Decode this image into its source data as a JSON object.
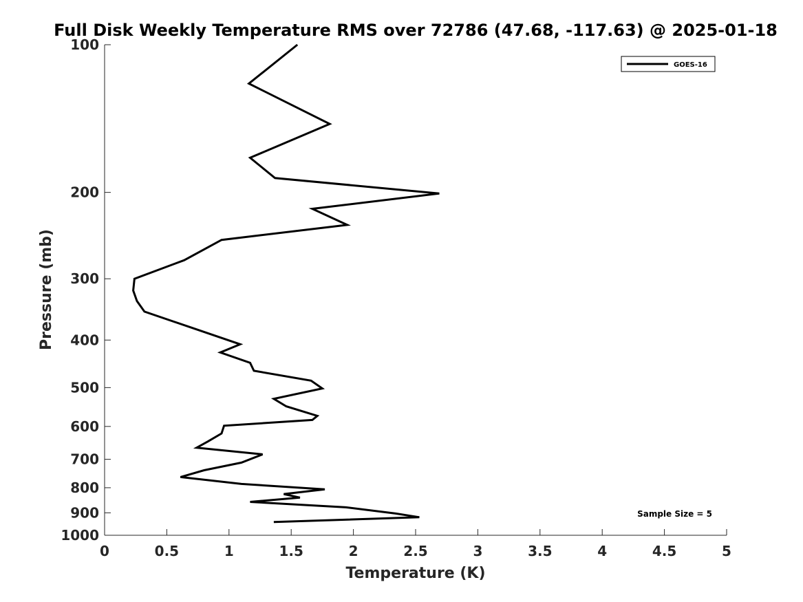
{
  "chart_data": {
    "type": "line",
    "title": "Full Disk Weekly Temperature RMS over 72786 (47.68, -117.63) @ 2025-01-18",
    "xlabel": "Temperature (K)",
    "ylabel": "Pressure (mb)",
    "xlim": [
      0,
      5
    ],
    "ylim": [
      100,
      1000
    ],
    "y_scale": "log",
    "y_reversed": true,
    "grid": false,
    "legend_position": "top-right",
    "x_ticks": [
      "0",
      "0.5",
      "1",
      "1.5",
      "2",
      "2.5",
      "3",
      "3.5",
      "4",
      "4.5",
      "5"
    ],
    "y_ticks": [
      "100",
      "200",
      "300",
      "400",
      "500",
      "600",
      "700",
      "800",
      "900",
      "1000"
    ],
    "annotation": "Sample Size = 5",
    "series": [
      {
        "name": "GOES-16",
        "color": "#000000",
        "x": [
          1.55,
          1.16,
          1.81,
          1.17,
          1.37,
          2.69,
          1.67,
          1.95,
          0.94,
          0.64,
          0.24,
          0.23,
          0.26,
          0.32,
          0.68,
          1.09,
          0.93,
          1.17,
          1.2,
          1.66,
          1.75,
          1.36,
          1.46,
          1.71,
          1.67,
          0.96,
          0.94,
          0.83,
          0.74,
          1.27,
          1.1,
          0.8,
          0.61,
          1.1,
          1.77,
          1.44,
          1.57,
          1.17,
          1.94,
          2.34,
          2.53,
          1.36
        ],
        "y": [
          100,
          120,
          145,
          170,
          187,
          201,
          216,
          233,
          250,
          275,
          300,
          317,
          333,
          350,
          376,
          408,
          424,
          445,
          462,
          484,
          502,
          527,
          546,
          571,
          582,
          598,
          620,
          644,
          663,
          684,
          711,
          737,
          761,
          786,
          806,
          824,
          838,
          855,
          877,
          903,
          919,
          940
        ]
      }
    ]
  }
}
